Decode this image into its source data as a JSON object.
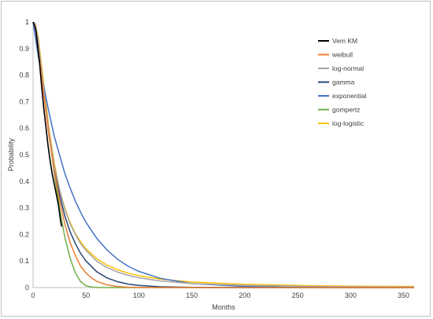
{
  "chart_data": {
    "type": "line",
    "xlabel": "Months",
    "ylabel": "Probability",
    "xlim": [
      0,
      360
    ],
    "ylim": [
      0,
      1
    ],
    "x_ticks": [
      0,
      50,
      100,
      150,
      200,
      250,
      300,
      350
    ],
    "y_ticks": [
      0,
      0.1,
      0.2,
      0.3,
      0.4,
      0.5,
      0.6,
      0.7,
      0.8,
      0.9,
      1
    ],
    "x_tick_labels": [
      "0",
      "50",
      "100",
      "150",
      "200",
      "250",
      "300",
      "350"
    ],
    "y_tick_labels": [
      "0",
      "0.1",
      "0.2",
      "0.3",
      "0.4",
      "0.5",
      "0.6",
      "0.7",
      "0.8",
      "0.9",
      "1"
    ],
    "grid": false,
    "legend_position": "top-right",
    "series": [
      {
        "name": "Vem KM",
        "color": "#000000",
        "x": [
          0,
          1,
          2,
          3,
          4,
          6,
          8,
          10,
          12,
          14,
          16,
          18,
          20,
          22,
          24,
          25,
          26,
          27
        ],
        "y": [
          1,
          0.99,
          0.98,
          0.96,
          0.92,
          0.85,
          0.76,
          0.68,
          0.61,
          0.54,
          0.48,
          0.43,
          0.39,
          0.35,
          0.31,
          0.28,
          0.25,
          0.23
        ]
      },
      {
        "name": "weibull",
        "color": "#ed7d31",
        "x": [
          0,
          2,
          5,
          10,
          15,
          20,
          25,
          30,
          35,
          40,
          45,
          50,
          55,
          60,
          70,
          80,
          90,
          100,
          120,
          150,
          200,
          250,
          300,
          360
        ],
        "y": [
          1,
          0.985,
          0.9,
          0.73,
          0.57,
          0.44,
          0.33,
          0.24,
          0.17,
          0.12,
          0.08,
          0.055,
          0.037,
          0.024,
          0.01,
          0.004,
          0.0015,
          0.0006,
          0.0001,
          0,
          0,
          0,
          0,
          0
        ]
      },
      {
        "name": "log-normal",
        "color": "#a5a5a5",
        "x": [
          0,
          2,
          5,
          10,
          15,
          20,
          25,
          30,
          35,
          40,
          45,
          50,
          60,
          70,
          80,
          90,
          100,
          120,
          150,
          200,
          250,
          300,
          360
        ],
        "y": [
          1,
          0.995,
          0.93,
          0.75,
          0.59,
          0.46,
          0.37,
          0.295,
          0.24,
          0.2,
          0.165,
          0.14,
          0.1,
          0.075,
          0.058,
          0.046,
          0.037,
          0.025,
          0.015,
          0.008,
          0.005,
          0.003,
          0.002
        ]
      },
      {
        "name": "gamma",
        "color": "#264478",
        "x": [
          0,
          2,
          5,
          10,
          15,
          20,
          25,
          30,
          35,
          40,
          45,
          50,
          60,
          70,
          80,
          90,
          100,
          120,
          150,
          200,
          250,
          300,
          360
        ],
        "y": [
          1,
          0.99,
          0.92,
          0.74,
          0.58,
          0.45,
          0.35,
          0.27,
          0.21,
          0.165,
          0.128,
          0.1,
          0.06,
          0.036,
          0.022,
          0.013,
          0.008,
          0.003,
          0.001,
          0,
          0,
          0,
          0
        ]
      },
      {
        "name": "exponential",
        "color": "#4472c4",
        "x": [
          0,
          5,
          10,
          15,
          20,
          25,
          30,
          35,
          40,
          45,
          50,
          60,
          70,
          80,
          90,
          100,
          120,
          150,
          200,
          250,
          300,
          360
        ],
        "y": [
          1,
          0.87,
          0.76,
          0.66,
          0.57,
          0.5,
          0.43,
          0.375,
          0.325,
          0.283,
          0.246,
          0.186,
          0.141,
          0.106,
          0.08,
          0.061,
          0.035,
          0.015,
          0.004,
          0.001,
          0,
          0
        ]
      },
      {
        "name": "gompertz",
        "color": "#70ad47",
        "x": [
          0,
          2,
          5,
          10,
          15,
          20,
          25,
          30,
          35,
          40,
          45,
          50,
          55,
          60,
          65,
          70,
          80,
          360
        ],
        "y": [
          1,
          0.99,
          0.91,
          0.74,
          0.58,
          0.43,
          0.3,
          0.19,
          0.11,
          0.055,
          0.022,
          0.007,
          0.002,
          0.0005,
          0.0001,
          0,
          0,
          0
        ]
      },
      {
        "name": "log-logistic",
        "color": "#ffc000",
        "x": [
          0,
          2,
          5,
          10,
          15,
          20,
          25,
          30,
          35,
          40,
          45,
          50,
          60,
          70,
          80,
          90,
          100,
          120,
          150,
          200,
          250,
          300,
          360
        ],
        "y": [
          1,
          0.995,
          0.94,
          0.77,
          0.6,
          0.47,
          0.37,
          0.3,
          0.245,
          0.203,
          0.172,
          0.146,
          0.109,
          0.084,
          0.067,
          0.054,
          0.045,
          0.032,
          0.021,
          0.012,
          0.008,
          0.005,
          0.004
        ]
      }
    ]
  }
}
